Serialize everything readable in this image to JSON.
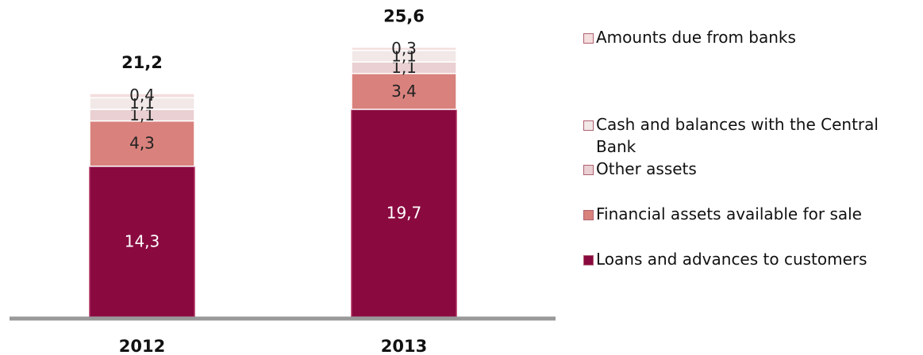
{
  "chart_data": {
    "type": "stacked-bar",
    "categories": [
      "2012",
      "2013"
    ],
    "series": [
      {
        "name": "Loans and advances to customers",
        "color": "#8a0a40",
        "values": [
          14.3,
          19.7
        ],
        "value_labels": [
          "14,3",
          "19,7"
        ]
      },
      {
        "name": "Financial assets available for sale",
        "color": "#d9827d",
        "values": [
          4.3,
          3.4
        ],
        "value_labels": [
          "4,3",
          "3,4"
        ]
      },
      {
        "name": "Other assets",
        "color": "#ead0d2",
        "values": [
          1.1,
          1.1
        ],
        "value_labels": [
          "1,1",
          "1,1"
        ]
      },
      {
        "name": "Cash and balances with the Central Bank",
        "color": "#f2e8e8",
        "values": [
          1.1,
          1.1
        ],
        "value_labels": [
          "1,1",
          "1,1"
        ]
      },
      {
        "name": "Amounts due from banks",
        "color": "#f4dede",
        "values": [
          0.4,
          0.3
        ],
        "value_labels": [
          "0,4",
          "0,3"
        ]
      }
    ],
    "totals": [
      21.2,
      25.6
    ],
    "total_labels": [
      "21,2",
      "25,6"
    ]
  }
}
